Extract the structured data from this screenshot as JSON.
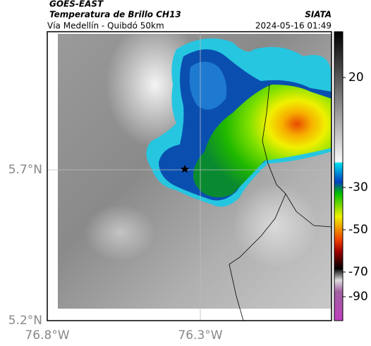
{
  "header": {
    "agency": "GOES-EAST",
    "title": "Temperatura de Brillo CH13",
    "source": "SIATA",
    "route": "Vía Medellín - Quibdó 50km",
    "timestamp": "2024-05-16 01:49"
  },
  "axes": {
    "lat_ticks": [
      "5.7°N",
      "5.2°N"
    ],
    "lon_ticks": [
      "76.8°W",
      "76.3°W"
    ]
  },
  "colorbar": {
    "ticks": [
      20,
      -30,
      -50,
      -70,
      -90
    ]
  }
}
